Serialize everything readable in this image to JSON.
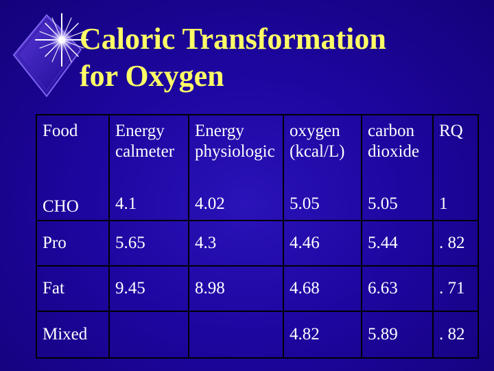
{
  "slide": {
    "title_line1": "Caloric Transformation",
    "title_line2": "for Oxygen",
    "bullet_icon": "starburst-diamond-icon",
    "colors": {
      "background": "#1d06a0",
      "title": "#ffff66",
      "text": "#ffffff",
      "table_border": "#000000"
    }
  },
  "table": {
    "headers": [
      {
        "line1": "Food",
        "line2": ""
      },
      {
        "line1": "Energy",
        "line2": "calmeter"
      },
      {
        "line1": "Energy",
        "line2": "physiologic"
      },
      {
        "line1": "oxygen",
        "line2": "(kcal/L)"
      },
      {
        "line1": "carbon",
        "line2": "dioxide"
      },
      {
        "line1": "RQ",
        "line2": ""
      }
    ],
    "rows": [
      [
        "CHO",
        "4.1",
        "4.02",
        "5.05",
        "5.05",
        "1"
      ],
      [
        "Pro",
        "5.65",
        "4.3",
        "4.46",
        "5.44",
        ". 82"
      ],
      [
        "Fat",
        "9.45",
        "8.98",
        "4.68",
        "6.63",
        ". 71"
      ],
      [
        "Mixed",
        "",
        "",
        "4.82",
        "5.89",
        ". 82"
      ]
    ]
  }
}
